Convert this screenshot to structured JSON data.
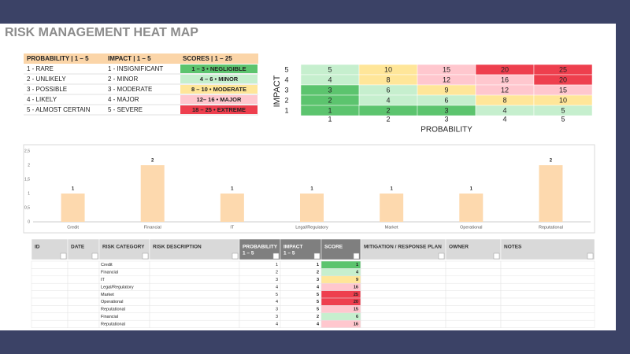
{
  "title": "RISK MANAGEMENT HEAT MAP",
  "legend": {
    "headers": [
      "PROBABILITY | 1 – 5",
      "IMPACT | 1 – 5",
      "SCORES | 1 – 25"
    ],
    "rows": [
      [
        "1 - RARE",
        "1 - INSIGNIFICANT",
        "1 – 3 • NEGLIGIBLE"
      ],
      [
        "2 - UNLIKELY",
        "2 - MINOR",
        "4 – 6 • MINOR"
      ],
      [
        "3 - POSSIBLE",
        "3 - MODERATE",
        "8 – 10 • MODERATE"
      ],
      [
        "4 - LIKELY",
        "4 - MAJOR",
        "12– 16 • MAJOR"
      ],
      [
        "5 - ALMOST CERTAIN",
        "5 - SEVERE",
        "18 – 25 • EXTREME"
      ]
    ],
    "colors": [
      "#5cc46e",
      "#c6efce",
      "#ffe699",
      "#ffc7ce",
      "#ee3f4e"
    ]
  },
  "heatmap": {
    "ylabel": "IMPACT",
    "xlabel": "PROBABILITY",
    "row_labels": [
      "5",
      "4",
      "3",
      "2",
      "1"
    ],
    "col_labels": [
      "1",
      "2",
      "3",
      "4",
      "5"
    ],
    "cells": [
      [
        "5",
        "10",
        "15",
        "20",
        "25"
      ],
      [
        "4",
        "8",
        "12",
        "16",
        "20"
      ],
      [
        "3",
        "6",
        "9",
        "12",
        "15"
      ],
      [
        "2",
        "4",
        "6",
        "8",
        "10"
      ],
      [
        "1",
        "2",
        "3",
        "4",
        "5"
      ]
    ],
    "colors": [
      [
        "#c6efce",
        "#ffe699",
        "#ffc7ce",
        "#ee3f4e",
        "#ee3f4e"
      ],
      [
        "#c6efce",
        "#ffe699",
        "#ffc7ce",
        "#ffc7ce",
        "#ee3f4e"
      ],
      [
        "#5cc46e",
        "#c6efce",
        "#ffe699",
        "#ffc7ce",
        "#ffc7ce"
      ],
      [
        "#5cc46e",
        "#c6efce",
        "#c6efce",
        "#ffe699",
        "#ffe699"
      ],
      [
        "#5cc46e",
        "#5cc46e",
        "#5cc46e",
        "#c6efce",
        "#c6efce"
      ]
    ]
  },
  "chart_data": {
    "type": "bar",
    "categories": [
      "Credit",
      "Financial",
      "IT",
      "Legal/Regulatory",
      "Market",
      "Operational",
      "Reputational"
    ],
    "values": [
      1,
      2,
      1,
      1,
      1,
      1,
      2
    ],
    "color": "#fdd9ae",
    "ylim": [
      0,
      2.5
    ],
    "yticks": [
      0,
      {
        "value": 0.5,
        "label": "0,5"
      },
      1,
      {
        "value": 1.5,
        "label": "1,5"
      },
      2,
      {
        "value": 2.5,
        "label": "2,5"
      }
    ],
    "grid": false
  },
  "table": {
    "headers": [
      [
        "ID"
      ],
      [
        "DATE"
      ],
      [
        "RISK CATEGORY"
      ],
      [
        "RISK DESCRIPTION"
      ],
      [
        "PROBABILITY",
        "1 – 5"
      ],
      [
        "IMPACT",
        "1 – 5"
      ],
      [
        "SCORE"
      ],
      [
        "MITIGATION / RESPONSE PLAN"
      ],
      [
        "OWNER"
      ],
      [
        "NOTES"
      ]
    ],
    "rows": [
      [
        "Credit",
        "1",
        "1",
        "1"
      ],
      [
        "Financial",
        "2",
        "2",
        "4"
      ],
      [
        "IT",
        "3",
        "3",
        "9"
      ],
      [
        "Legal/Regulatory",
        "4",
        "4",
        "16"
      ],
      [
        "Market",
        "5",
        "5",
        "25"
      ],
      [
        "Operational",
        "4",
        "5",
        "20"
      ],
      [
        "Reputational",
        "3",
        "5",
        "15"
      ],
      [
        "Financial",
        "3",
        "2",
        "6"
      ],
      [
        "Reputational",
        "4",
        "4",
        "16"
      ]
    ],
    "score_colors": [
      "#5cc46e",
      "#c6efce",
      "#ffe699",
      "#ffc7ce",
      "#ee3f4e",
      "#ee3f4e",
      "#ffc7ce",
      "#c6efce",
      "#ffc7ce"
    ]
  }
}
